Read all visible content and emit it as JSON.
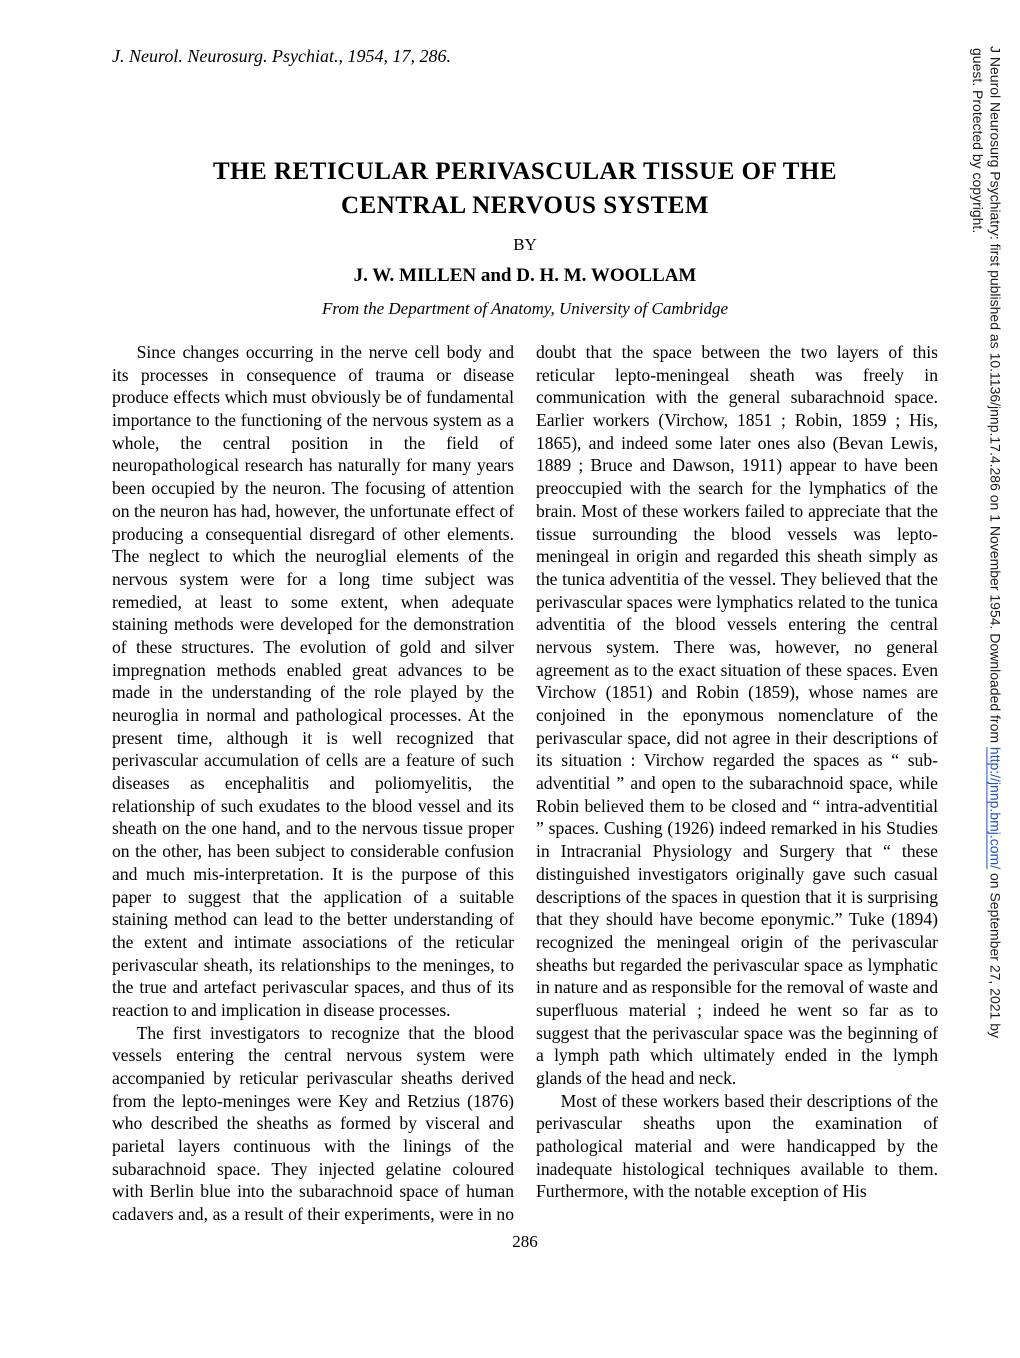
{
  "reference_line": "J. Neurol. Neurosurg. Psychiat., 1954, 17, 286.",
  "title_line1": "THE RETICULAR PERIVASCULAR TISSUE OF THE",
  "title_line2": "CENTRAL NERVOUS SYSTEM",
  "by": "BY",
  "authors": "J. W. MILLEN and D. H. M. WOOLLAM",
  "from": "From the Department of Anatomy, University of Cambridge",
  "body": {
    "p1": "Since changes occurring in the nerve cell body and its processes in consequence of trauma or disease produce effects which must obviously be of fundamental importance to the functioning of the nervous system as a whole, the central position in the field of neuropathological research has naturally for many years been occupied by the neuron. The focusing of attention on the neuron has had, however, the unfortunate effect of producing a consequential disregard of other elements. The neglect to which the neuroglial elements of the nervous system were for a long time subject was remedied, at least to some extent, when adequate staining methods were developed for the demonstration of these structures. The evolution of gold and silver impregnation methods enabled great advances to be made in the understanding of the role played by the neuroglia in normal and pathological processes. At the present time, although it is well recognized that perivascular accumulation of cells are a feature of such diseases as encephalitis and poliomyelitis, the relationship of such exudates to the blood vessel and its sheath on the one hand, and to the nervous tissue proper on the other, has been subject to considerable confusion and much mis-interpretation. It is the purpose of this paper to suggest that the application of a suitable staining method can lead to the better understanding of the extent and intimate associations of the reticular perivascular sheath, its relationships to the meninges, to the true and artefact perivascular spaces, and thus of its reaction to and implication in disease processes.",
    "p2": "The first investigators to recognize that the blood vessels entering the central nervous system were accompanied by reticular perivascular sheaths derived from the lepto-meninges were Key and Retzius (1876) who described the sheaths as formed by visceral and parietal layers continuous with the linings of the subarachnoid space. They injected gelatine coloured with Berlin blue into the subarachnoid space of human cadavers and, as a result of their experiments, were in no doubt that the space between the two layers of this reticular lepto-meningeal sheath was freely in communication with the general subarachnoid space. Earlier workers (Virchow, 1851 ; Robin, 1859 ; His, 1865), and indeed some later ones also (Bevan Lewis, 1889 ; Bruce and Dawson, 1911) appear to have been preoccupied with the search for the lymphatics of the brain. Most of these workers failed to appreciate that the tissue surrounding the blood vessels was lepto-meningeal in origin and regarded this sheath simply as the tunica adventitia of the vessel. They believed that the perivascular spaces were lymphatics related to the tunica adventitia of the blood vessels entering the central nervous system. There was, however, no general agreement as to the exact situation of these spaces. Even Virchow (1851) and Robin (1859), whose names are conjoined in the eponymous nomenclature of the perivascular space, did not agree in their descriptions of its situation : Virchow regarded the spaces as “ sub-adventitial ” and open to the subarachnoid space, while Robin believed them to be closed and “ intra-adventitial ” spaces. Cushing (1926) indeed remarked in his Studies in Intracranial Physiology and Surgery that “ these distinguished investigators originally gave such casual descriptions of the spaces in question that it is surprising that they should have become eponymic.” Tuke (1894) recognized the meningeal origin of the perivascular sheaths but regarded the perivascular space as lymphatic in nature and as responsible for the removal of waste and superfluous material ; indeed he went so far as to suggest that the perivascular space was the beginning of a lymph path which ultimately ended in the lymph glands of the head and neck.",
    "p3": "Most of these workers based their descriptions of the perivascular sheaths upon the examination of pathological material and were handicapped by the inadequate histological techniques available to them. Furthermore, with the notable exception of His"
  },
  "page_number": "286",
  "sidebar": {
    "line1_prefix": "J Neurol Neurosurg Psychiatry: first published as 10.1136/jnnp.17.4.286 on 1 November 1954. Downloaded from ",
    "link_text": "http://jnnp.bmj.com/",
    "link_href": "http://jnnp.bmj.com/",
    "line1_suffix": " on September 27, 2021 by",
    "line2": "guest. Protected by copyright."
  }
}
